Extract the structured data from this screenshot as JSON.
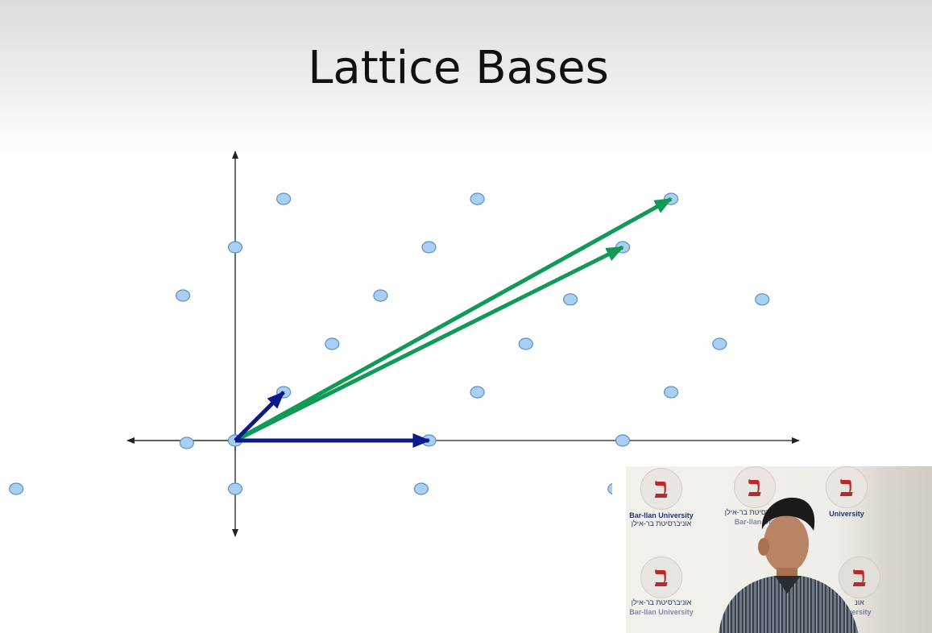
{
  "slide": {
    "title": "Lattice Bases"
  },
  "diagram": {
    "origin_point": [
      0,
      0
    ],
    "lattice_points": [
      [
        -1.13,
        -1.0
      ],
      [
        0.0,
        -1.0
      ],
      [
        0.96,
        -1.0
      ],
      [
        1.96,
        -1.0
      ],
      [
        -0.25,
        -0.05
      ],
      [
        0.0,
        0.0
      ],
      [
        1.0,
        0.0
      ],
      [
        2.0,
        0.0
      ],
      [
        0.25,
        1.0
      ],
      [
        1.25,
        1.0
      ],
      [
        2.25,
        1.0
      ],
      [
        0.5,
        2.0
      ],
      [
        1.5,
        2.0
      ],
      [
        2.5,
        2.0
      ],
      [
        -0.27,
        3.0
      ],
      [
        0.75,
        3.0
      ],
      [
        1.73,
        2.92
      ],
      [
        2.72,
        2.92
      ],
      [
        0.0,
        4.0
      ],
      [
        1.0,
        4.0
      ],
      [
        2.0,
        4.0
      ],
      [
        0.25,
        5.0
      ],
      [
        1.25,
        5.0
      ],
      [
        2.25,
        5.0
      ]
    ],
    "short_basis_vectors": [
      [
        1.0,
        0.0
      ],
      [
        0.25,
        1.0
      ]
    ],
    "long_basis_vectors": [
      [
        2.0,
        4.0
      ],
      [
        2.25,
        5.0
      ]
    ],
    "colors": {
      "short_basis": "#0a1a8c",
      "long_basis": "#0f9a57",
      "point_fill": "#a9cff3",
      "point_stroke": "#5b8fc6",
      "axis": "#222222"
    }
  },
  "webcam": {
    "logo_text_en": "Bar-Ilan University",
    "logo_text_he": "אוניברסיטת בר-אילן",
    "logo_text_en_partial": "Bar-Ilan Uni",
    "logo_text_en_right": "University",
    "logo_text_en_right_bottom": "versity",
    "logo_text_he_right_bottom": "אונ"
  }
}
